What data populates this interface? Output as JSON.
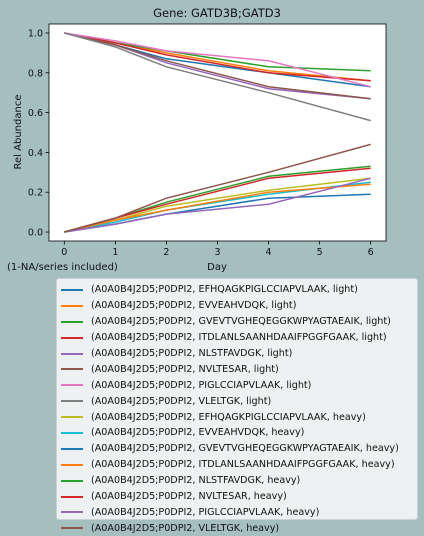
{
  "chart_data": {
    "type": "line",
    "title": "Gene: GATD3B;GATD3",
    "xlabel": "Day",
    "ylabel": "Rel Abundance",
    "footnote": "(1-NA/series included)",
    "x": [
      0,
      1,
      2,
      4,
      6
    ],
    "xticks": [
      0,
      1,
      2,
      3,
      4,
      5,
      6
    ],
    "yticks": [
      "0.0",
      "0.2",
      "0.4",
      "0.6",
      "0.8",
      "1.0"
    ],
    "xlim": [
      -0.3,
      6.3
    ],
    "ylim": [
      -0.045,
      1.045
    ],
    "grid": false,
    "legend_position": "below",
    "series": [
      {
        "name": "(A0A0B4J2D5;P0DPI2, EFHQAGKPIGLCCIAPVLAAK, light)",
        "color": "#1f77b4",
        "values": [
          1.0,
          0.94,
          0.87,
          0.8,
          0.73
        ]
      },
      {
        "name": "(A0A0B4J2D5;P0DPI2, EVVEAHVDQK, light)",
        "color": "#ff7f0e",
        "values": [
          1.0,
          0.95,
          0.9,
          0.81,
          0.76
        ]
      },
      {
        "name": "(A0A0B4J2D5;P0DPI2, GVEVTVGHEQEGGKWPYAGTAEAIK, light)",
        "color": "#2ca02c",
        "values": [
          1.0,
          0.95,
          0.91,
          0.83,
          0.81
        ]
      },
      {
        "name": "(A0A0B4J2D5;P0DPI2, ITDLANLSAANHDAAIFPGGFGAAK, light)",
        "color": "#d62728",
        "values": [
          1.0,
          0.95,
          0.89,
          0.8,
          0.76
        ]
      },
      {
        "name": "(A0A0B4J2D5;P0DPI2, NLSTFAVDGK, light)",
        "color": "#9467bd",
        "values": [
          1.0,
          0.94,
          0.85,
          0.72,
          0.67
        ]
      },
      {
        "name": "(A0A0B4J2D5;P0DPI2, NVLTESAR, light)",
        "color": "#8c564b",
        "values": [
          1.0,
          0.94,
          0.86,
          0.73,
          0.67
        ]
      },
      {
        "name": "(A0A0B4J2D5;P0DPI2, PIGLCCIAPVLAAK, light)",
        "color": "#e377c2",
        "values": [
          1.0,
          0.96,
          0.91,
          0.86,
          0.73
        ]
      },
      {
        "name": "(A0A0B4J2D5;P0DPI2, VLELTGK, light)",
        "color": "#7f7f7f",
        "values": [
          1.0,
          0.93,
          0.83,
          0.7,
          0.56
        ]
      },
      {
        "name": "(A0A0B4J2D5;P0DPI2, EFHQAGKPIGLCCIAPVLAAK, heavy)",
        "color": "#bcbd22",
        "values": [
          0.0,
          0.06,
          0.13,
          0.21,
          0.27
        ]
      },
      {
        "name": "(A0A0B4J2D5;P0DPI2, EVVEAHVDQK, heavy)",
        "color": "#17becf",
        "values": [
          0.0,
          0.05,
          0.11,
          0.19,
          0.25
        ]
      },
      {
        "name": "(A0A0B4J2D5;P0DPI2, GVEVTVGHEQEGGKWPYAGTAEAIK, heavy)",
        "color": "#1f77b4",
        "values": [
          0.0,
          0.04,
          0.09,
          0.17,
          0.19
        ]
      },
      {
        "name": "(A0A0B4J2D5;P0DPI2, ITDLANLSAANHDAAIFPGGFGAAK, heavy)",
        "color": "#ff7f0e",
        "values": [
          0.0,
          0.06,
          0.11,
          0.2,
          0.24
        ]
      },
      {
        "name": "(A0A0B4J2D5;P0DPI2, NLSTFAVDGK, heavy)",
        "color": "#2ca02c",
        "values": [
          0.0,
          0.07,
          0.15,
          0.28,
          0.33
        ]
      },
      {
        "name": "(A0A0B4J2D5;P0DPI2, NVLTESAR, heavy)",
        "color": "#d62728",
        "values": [
          0.0,
          0.07,
          0.14,
          0.27,
          0.32
        ]
      },
      {
        "name": "(A0A0B4J2D5;P0DPI2, PIGLCCIAPVLAAK, heavy)",
        "color": "#9467bd",
        "values": [
          0.0,
          0.04,
          0.09,
          0.14,
          0.27
        ]
      },
      {
        "name": "(A0A0B4J2D5;P0DPI2, VLELTGK, heavy)",
        "color": "#8c564b",
        "values": [
          0.0,
          0.07,
          0.17,
          0.3,
          0.44
        ]
      }
    ]
  }
}
